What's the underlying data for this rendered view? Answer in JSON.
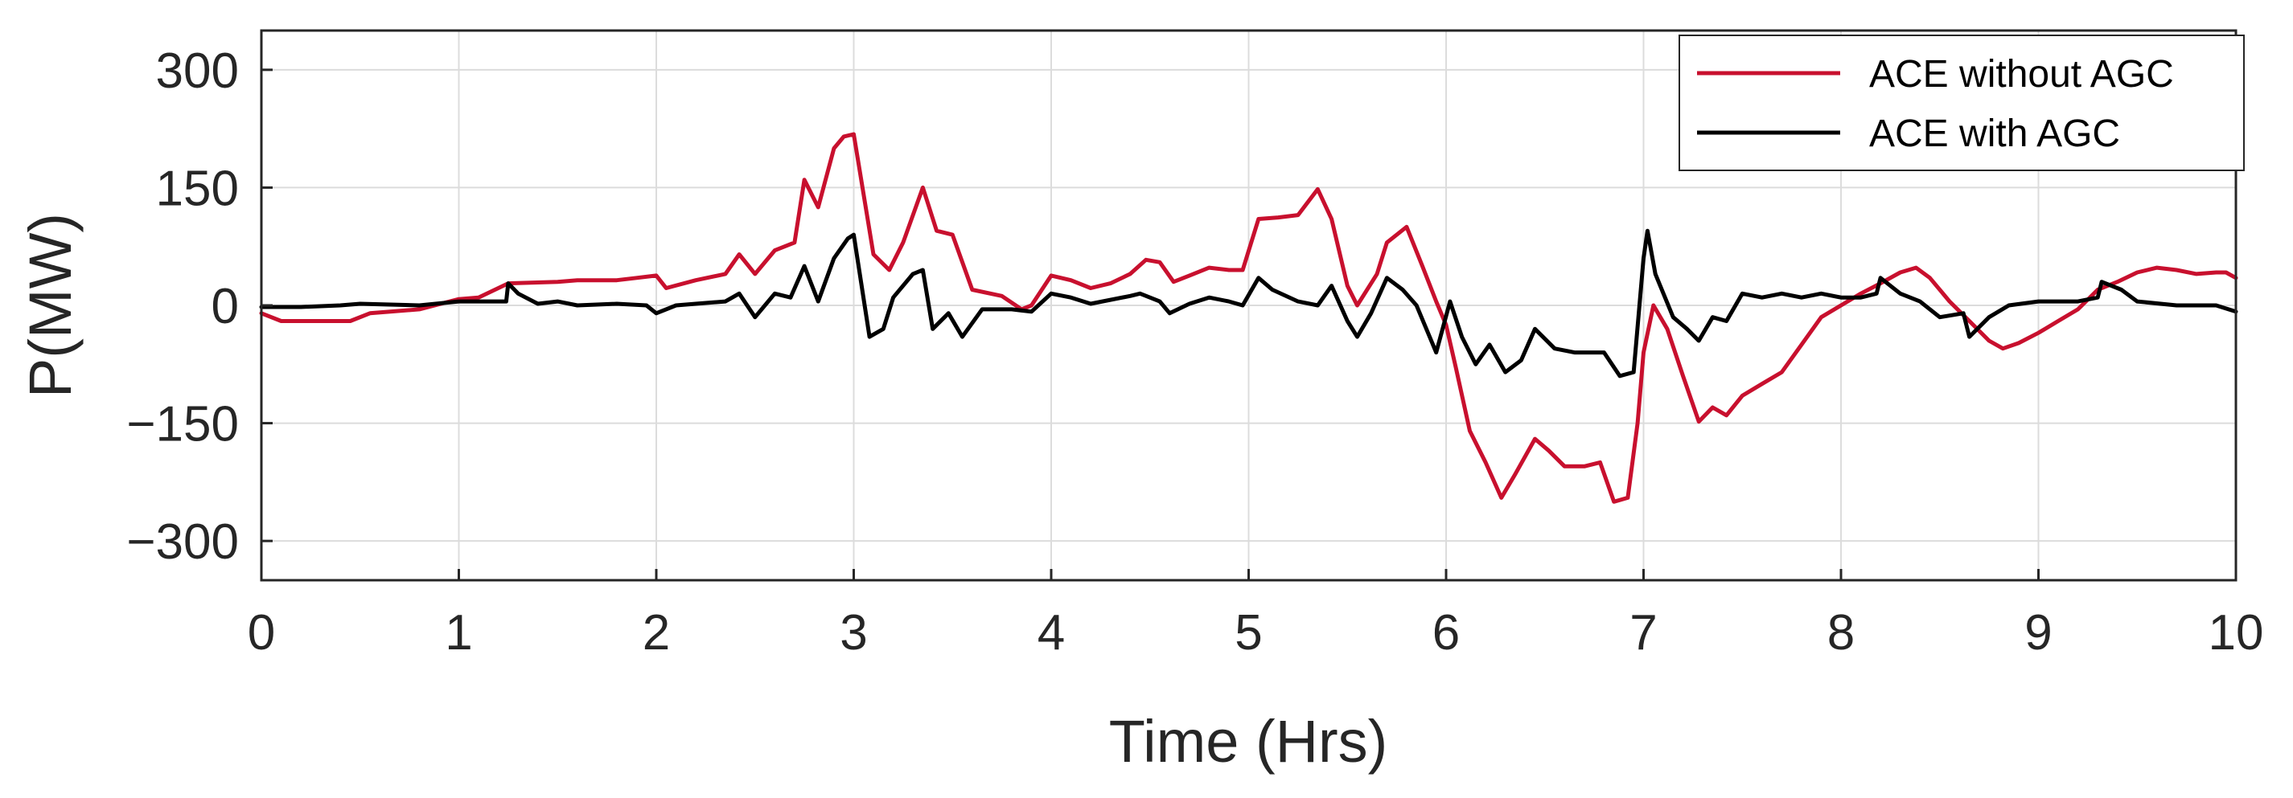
{
  "chart_data": {
    "type": "line",
    "title": "",
    "xlabel": "Time (Hrs)",
    "ylabel": "P(MW)",
    "xlim": [
      0,
      10
    ],
    "ylim": [
      -350,
      350
    ],
    "xticks": [
      0,
      1,
      2,
      3,
      4,
      5,
      6,
      7,
      8,
      9,
      10
    ],
    "yticks": [
      300,
      150,
      0,
      -150,
      -300
    ],
    "xtick_labels": [
      "0",
      "1",
      "2",
      "3",
      "4",
      "5",
      "6",
      "7",
      "8",
      "9",
      "10"
    ],
    "ytick_labels": [
      "300",
      "150",
      "0",
      "−150",
      "−300"
    ],
    "grid": true,
    "legend_position": "top-right",
    "series": [
      {
        "name": "ACE without AGC",
        "color": "#c8102e",
        "points": [
          [
            0,
            -10
          ],
          [
            0.1,
            -20
          ],
          [
            0.3,
            -20
          ],
          [
            0.45,
            -20
          ],
          [
            0.55,
            -10
          ],
          [
            0.8,
            -5
          ],
          [
            1.0,
            8
          ],
          [
            1.1,
            10
          ],
          [
            1.25,
            28
          ],
          [
            1.5,
            30
          ],
          [
            1.6,
            32
          ],
          [
            1.8,
            32
          ],
          [
            1.9,
            35
          ],
          [
            2.0,
            38
          ],
          [
            2.05,
            22
          ],
          [
            2.2,
            32
          ],
          [
            2.35,
            40
          ],
          [
            2.42,
            65
          ],
          [
            2.5,
            40
          ],
          [
            2.6,
            70
          ],
          [
            2.7,
            80
          ],
          [
            2.75,
            160
          ],
          [
            2.82,
            125
          ],
          [
            2.9,
            200
          ],
          [
            2.95,
            215
          ],
          [
            3.0,
            218
          ],
          [
            3.1,
            65
          ],
          [
            3.18,
            45
          ],
          [
            3.25,
            80
          ],
          [
            3.35,
            150
          ],
          [
            3.42,
            95
          ],
          [
            3.5,
            90
          ],
          [
            3.6,
            20
          ],
          [
            3.75,
            12
          ],
          [
            3.85,
            -5
          ],
          [
            3.9,
            0
          ],
          [
            4.0,
            38
          ],
          [
            4.1,
            32
          ],
          [
            4.2,
            22
          ],
          [
            4.3,
            28
          ],
          [
            4.4,
            40
          ],
          [
            4.48,
            58
          ],
          [
            4.55,
            55
          ],
          [
            4.62,
            30
          ],
          [
            4.7,
            38
          ],
          [
            4.8,
            48
          ],
          [
            4.9,
            45
          ],
          [
            4.97,
            45
          ],
          [
            5.05,
            110
          ],
          [
            5.15,
            112
          ],
          [
            5.25,
            115
          ],
          [
            5.35,
            148
          ],
          [
            5.42,
            110
          ],
          [
            5.5,
            25
          ],
          [
            5.55,
            0
          ],
          [
            5.65,
            40
          ],
          [
            5.7,
            80
          ],
          [
            5.8,
            100
          ],
          [
            5.88,
            50
          ],
          [
            5.95,
            5
          ],
          [
            6.0,
            -25
          ],
          [
            6.05,
            -80
          ],
          [
            6.12,
            -160
          ],
          [
            6.2,
            -200
          ],
          [
            6.28,
            -245
          ],
          [
            6.35,
            -215
          ],
          [
            6.45,
            -170
          ],
          [
            6.52,
            -185
          ],
          [
            6.6,
            -205
          ],
          [
            6.7,
            -205
          ],
          [
            6.78,
            -200
          ],
          [
            6.85,
            -250
          ],
          [
            6.92,
            -245
          ],
          [
            6.97,
            -150
          ],
          [
            7.0,
            -60
          ],
          [
            7.05,
            0
          ],
          [
            7.12,
            -30
          ],
          [
            7.2,
            -90
          ],
          [
            7.28,
            -148
          ],
          [
            7.35,
            -130
          ],
          [
            7.42,
            -140
          ],
          [
            7.5,
            -115
          ],
          [
            7.6,
            -100
          ],
          [
            7.7,
            -85
          ],
          [
            7.8,
            -50
          ],
          [
            7.9,
            -15
          ],
          [
            8.0,
            0
          ],
          [
            8.1,
            15
          ],
          [
            8.2,
            28
          ],
          [
            8.3,
            42
          ],
          [
            8.38,
            48
          ],
          [
            8.45,
            35
          ],
          [
            8.55,
            5
          ],
          [
            8.65,
            -20
          ],
          [
            8.75,
            -45
          ],
          [
            8.82,
            -55
          ],
          [
            8.9,
            -48
          ],
          [
            9.0,
            -35
          ],
          [
            9.1,
            -20
          ],
          [
            9.2,
            -5
          ],
          [
            9.3,
            20
          ],
          [
            9.4,
            30
          ],
          [
            9.5,
            42
          ],
          [
            9.6,
            48
          ],
          [
            9.7,
            45
          ],
          [
            9.8,
            40
          ],
          [
            9.9,
            42
          ],
          [
            9.95,
            42
          ],
          [
            10.0,
            35
          ]
        ]
      },
      {
        "name": "ACE with AGC",
        "color": "#000000",
        "points": [
          [
            0,
            -2
          ],
          [
            0.2,
            -2
          ],
          [
            0.4,
            0
          ],
          [
            0.5,
            2
          ],
          [
            0.8,
            0
          ],
          [
            1.0,
            5
          ],
          [
            1.15,
            5
          ],
          [
            1.24,
            5
          ],
          [
            1.25,
            28
          ],
          [
            1.3,
            15
          ],
          [
            1.4,
            2
          ],
          [
            1.5,
            5
          ],
          [
            1.6,
            0
          ],
          [
            1.8,
            2
          ],
          [
            1.95,
            0
          ],
          [
            2.0,
            -10
          ],
          [
            2.1,
            0
          ],
          [
            2.2,
            2
          ],
          [
            2.35,
            5
          ],
          [
            2.42,
            15
          ],
          [
            2.5,
            -15
          ],
          [
            2.6,
            15
          ],
          [
            2.68,
            10
          ],
          [
            2.75,
            50
          ],
          [
            2.82,
            5
          ],
          [
            2.9,
            60
          ],
          [
            2.97,
            85
          ],
          [
            3.0,
            90
          ],
          [
            3.08,
            -40
          ],
          [
            3.15,
            -30
          ],
          [
            3.2,
            10
          ],
          [
            3.3,
            40
          ],
          [
            3.35,
            45
          ],
          [
            3.4,
            -30
          ],
          [
            3.48,
            -10
          ],
          [
            3.55,
            -40
          ],
          [
            3.65,
            -5
          ],
          [
            3.8,
            -5
          ],
          [
            3.9,
            -8
          ],
          [
            4.0,
            15
          ],
          [
            4.1,
            10
          ],
          [
            4.2,
            2
          ],
          [
            4.4,
            12
          ],
          [
            4.45,
            15
          ],
          [
            4.55,
            5
          ],
          [
            4.6,
            -10
          ],
          [
            4.7,
            2
          ],
          [
            4.8,
            10
          ],
          [
            4.9,
            5
          ],
          [
            4.97,
            0
          ],
          [
            5.05,
            35
          ],
          [
            5.12,
            20
          ],
          [
            5.25,
            5
          ],
          [
            5.35,
            0
          ],
          [
            5.42,
            25
          ],
          [
            5.5,
            -20
          ],
          [
            5.55,
            -40
          ],
          [
            5.62,
            -10
          ],
          [
            5.7,
            35
          ],
          [
            5.78,
            20
          ],
          [
            5.85,
            0
          ],
          [
            5.95,
            -60
          ],
          [
            6.02,
            5
          ],
          [
            6.08,
            -40
          ],
          [
            6.15,
            -75
          ],
          [
            6.22,
            -50
          ],
          [
            6.3,
            -85
          ],
          [
            6.38,
            -70
          ],
          [
            6.45,
            -30
          ],
          [
            6.55,
            -55
          ],
          [
            6.65,
            -60
          ],
          [
            6.8,
            -60
          ],
          [
            6.88,
            -90
          ],
          [
            6.95,
            -85
          ],
          [
            7.0,
            60
          ],
          [
            7.02,
            95
          ],
          [
            7.06,
            40
          ],
          [
            7.15,
            -15
          ],
          [
            7.22,
            -30
          ],
          [
            7.28,
            -45
          ],
          [
            7.35,
            -15
          ],
          [
            7.42,
            -20
          ],
          [
            7.5,
            15
          ],
          [
            7.6,
            10
          ],
          [
            7.7,
            15
          ],
          [
            7.8,
            10
          ],
          [
            7.9,
            15
          ],
          [
            8.0,
            10
          ],
          [
            8.1,
            10
          ],
          [
            8.18,
            15
          ],
          [
            8.2,
            35
          ],
          [
            8.3,
            15
          ],
          [
            8.4,
            5
          ],
          [
            8.5,
            -15
          ],
          [
            8.62,
            -10
          ],
          [
            8.65,
            -40
          ],
          [
            8.75,
            -15
          ],
          [
            8.85,
            0
          ],
          [
            9.0,
            5
          ],
          [
            9.2,
            5
          ],
          [
            9.3,
            10
          ],
          [
            9.32,
            30
          ],
          [
            9.42,
            20
          ],
          [
            9.5,
            5
          ],
          [
            9.7,
            0
          ],
          [
            9.9,
            0
          ],
          [
            10.0,
            -8
          ]
        ]
      }
    ]
  }
}
